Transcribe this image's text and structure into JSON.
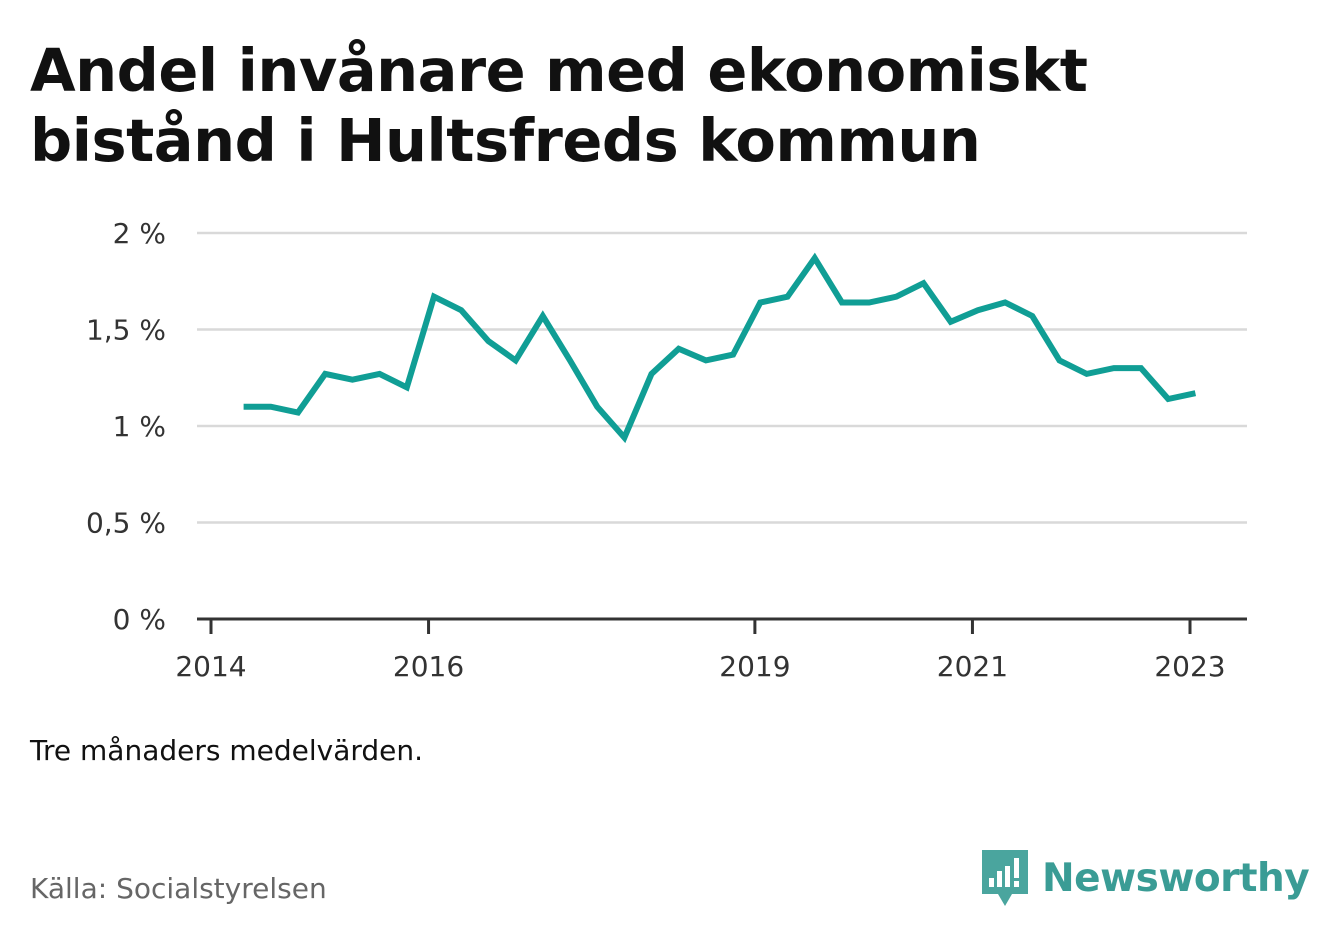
{
  "title": "Andel invånare med ekonomiskt bistånd i Hultsfreds kommun",
  "note": "Tre månaders medelvärden.",
  "source": "Källa: Socialstyrelsen",
  "brand": {
    "name": "Newsworthy",
    "icon": "newsworthy-logo-icon"
  },
  "colors": {
    "line": "#109e95",
    "grid": "#d9d9d9",
    "axis": "#333333",
    "brand": "#3a9c95"
  },
  "chart_data": {
    "type": "line",
    "title": "Andel invånare med ekonomiskt bistånd i Hultsfreds kommun",
    "xlabel": "",
    "ylabel": "",
    "ylim": [
      0,
      2
    ],
    "xlim": [
      2014,
      2024
    ],
    "grid": true,
    "y_ticks": [
      {
        "value": 0,
        "label": "0 %"
      },
      {
        "value": 0.5,
        "label": "0,5 %"
      },
      {
        "value": 1,
        "label": "1 %"
      },
      {
        "value": 1.5,
        "label": "1,5 %"
      },
      {
        "value": 2,
        "label": "2 %"
      }
    ],
    "x_ticks": [
      {
        "value": 2014,
        "label": "2014"
      },
      {
        "value": 2016,
        "label": "2016"
      },
      {
        "value": 2019,
        "label": "2019"
      },
      {
        "value": 2021,
        "label": "2021"
      },
      {
        "value": 2023,
        "label": "2023"
      }
    ],
    "series": [
      {
        "x": [
          2014.3,
          2014.55,
          2014.8,
          2015.05,
          2015.3,
          2015.55,
          2015.8,
          2016.05,
          2016.3,
          2016.55,
          2016.8,
          2017.05,
          2017.3,
          2017.55,
          2017.8,
          2018.05,
          2018.3,
          2018.55,
          2018.8,
          2019.05,
          2019.3,
          2019.55,
          2019.8,
          2020.05,
          2020.3,
          2020.55,
          2020.8,
          2021.05,
          2021.3,
          2021.55,
          2021.8,
          2022.05,
          2022.3,
          2022.55,
          2022.8,
          2023.05
        ],
        "values": [
          1.1,
          1.1,
          1.07,
          1.27,
          1.24,
          1.27,
          1.2,
          1.67,
          1.6,
          1.44,
          1.34,
          1.57,
          1.34,
          1.1,
          0.94,
          1.27,
          1.4,
          1.34,
          1.37,
          1.64,
          1.67,
          1.87,
          1.64,
          1.64,
          1.67,
          1.74,
          1.54,
          1.6,
          1.64,
          1.57,
          1.34,
          1.27,
          1.3,
          1.3,
          1.14,
          1.17
        ]
      }
    ]
  }
}
